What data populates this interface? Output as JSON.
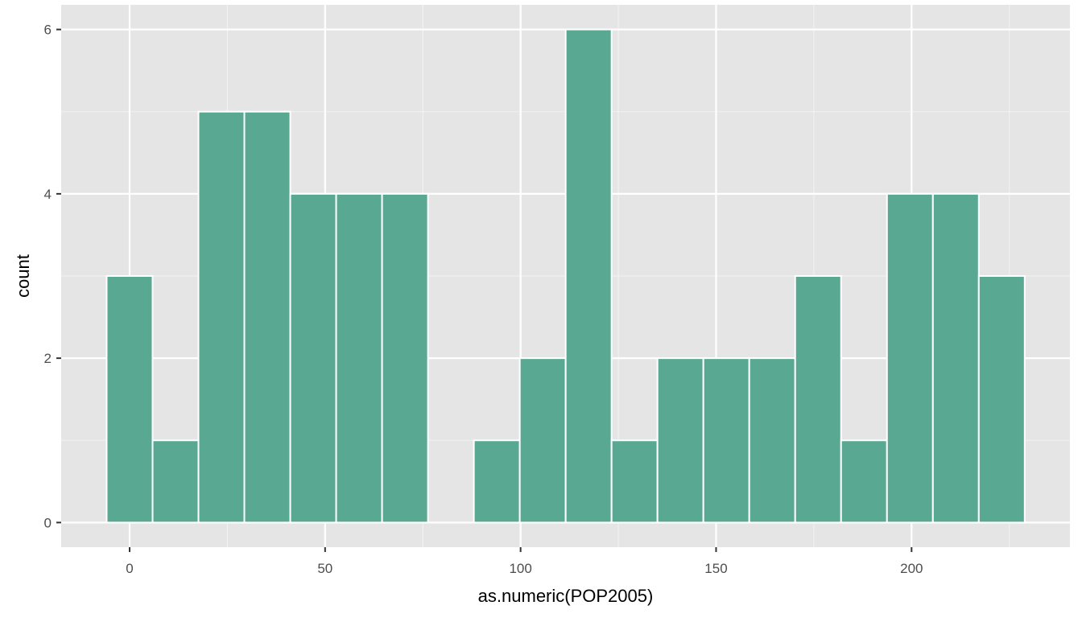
{
  "chart_data": {
    "type": "bar",
    "subtype": "histogram",
    "xlabel": "as.numeric(POP2005)",
    "ylabel": "count",
    "xlim": [
      -17.5,
      240.5
    ],
    "ylim": [
      -0.3,
      6.3
    ],
    "x_ticks": [
      0,
      50,
      100,
      150,
      200
    ],
    "x_tick_labels": [
      "0",
      "50",
      "100",
      "150",
      "200"
    ],
    "y_ticks": [
      0,
      2,
      4,
      6
    ],
    "y_tick_labels": [
      "0",
      "2",
      "4",
      "6"
    ],
    "bin_width": 11.74,
    "bins": [
      {
        "center": 0.0,
        "count": 3
      },
      {
        "center": 11.74,
        "count": 1
      },
      {
        "center": 23.48,
        "count": 5
      },
      {
        "center": 35.22,
        "count": 5
      },
      {
        "center": 46.96,
        "count": 4
      },
      {
        "center": 58.7,
        "count": 4
      },
      {
        "center": 70.44,
        "count": 4
      },
      {
        "center": 82.18,
        "count": 0
      },
      {
        "center": 93.92,
        "count": 1
      },
      {
        "center": 105.66,
        "count": 2
      },
      {
        "center": 117.4,
        "count": 6
      },
      {
        "center": 129.14,
        "count": 1
      },
      {
        "center": 140.88,
        "count": 2
      },
      {
        "center": 152.62,
        "count": 2
      },
      {
        "center": 164.36,
        "count": 2
      },
      {
        "center": 176.1,
        "count": 3
      },
      {
        "center": 187.84,
        "count": 1
      },
      {
        "center": 199.58,
        "count": 4
      },
      {
        "center": 211.32,
        "count": 4
      },
      {
        "center": 223.06,
        "count": 3
      }
    ],
    "grid": true,
    "legend": "none",
    "colors": {
      "bar_fill": "#59a891",
      "bar_outline": "#ffffff",
      "panel_background": "#e5e5e5",
      "grid_major": "#ffffff",
      "grid_minor": "#f2f2f2"
    }
  }
}
